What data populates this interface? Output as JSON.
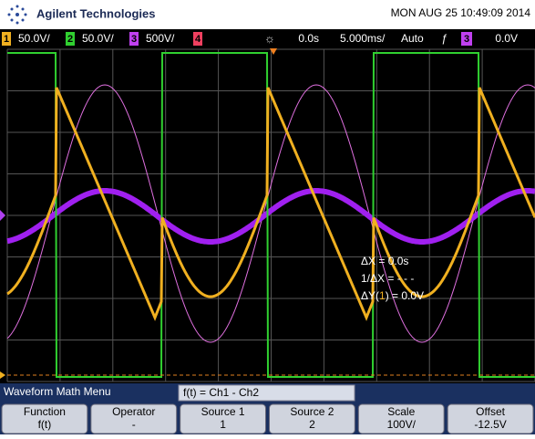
{
  "header": {
    "brand": "Agilent Technologies",
    "datetime": "MON AUG 25 10:49:09 2014"
  },
  "status_bar": {
    "channels": [
      {
        "number": "1",
        "scale": "50.0V/"
      },
      {
        "number": "2",
        "scale": "50.0V/"
      },
      {
        "number": "3",
        "scale": "500V/"
      },
      {
        "number": "4"
      }
    ],
    "delay": "0.0s",
    "timebase": "5.000ms/",
    "trigger_mode": "Auto",
    "trigger_source": "3",
    "trigger_level": "0.0V"
  },
  "cursors": {
    "delta_x": "ΔX = 0.0s",
    "inverse_delta_x": "1/ΔX = - - -",
    "delta_y_prefix": "ΔY(",
    "delta_y_channel": "1",
    "delta_y_suffix": ") = 0.0V"
  },
  "menu": {
    "title": "Waveform Math Menu",
    "expression": "f(t) = Ch1 - Ch2",
    "softkeys": [
      {
        "label": "Function",
        "value": "f(t)"
      },
      {
        "label": "Operator",
        "value": "-"
      },
      {
        "label": "Source 1",
        "value": "1"
      },
      {
        "label": "Source 2",
        "value": "2"
      },
      {
        "label": "Scale",
        "value": "100V/"
      },
      {
        "label": "Offset",
        "value": "-12.5V"
      }
    ]
  }
}
